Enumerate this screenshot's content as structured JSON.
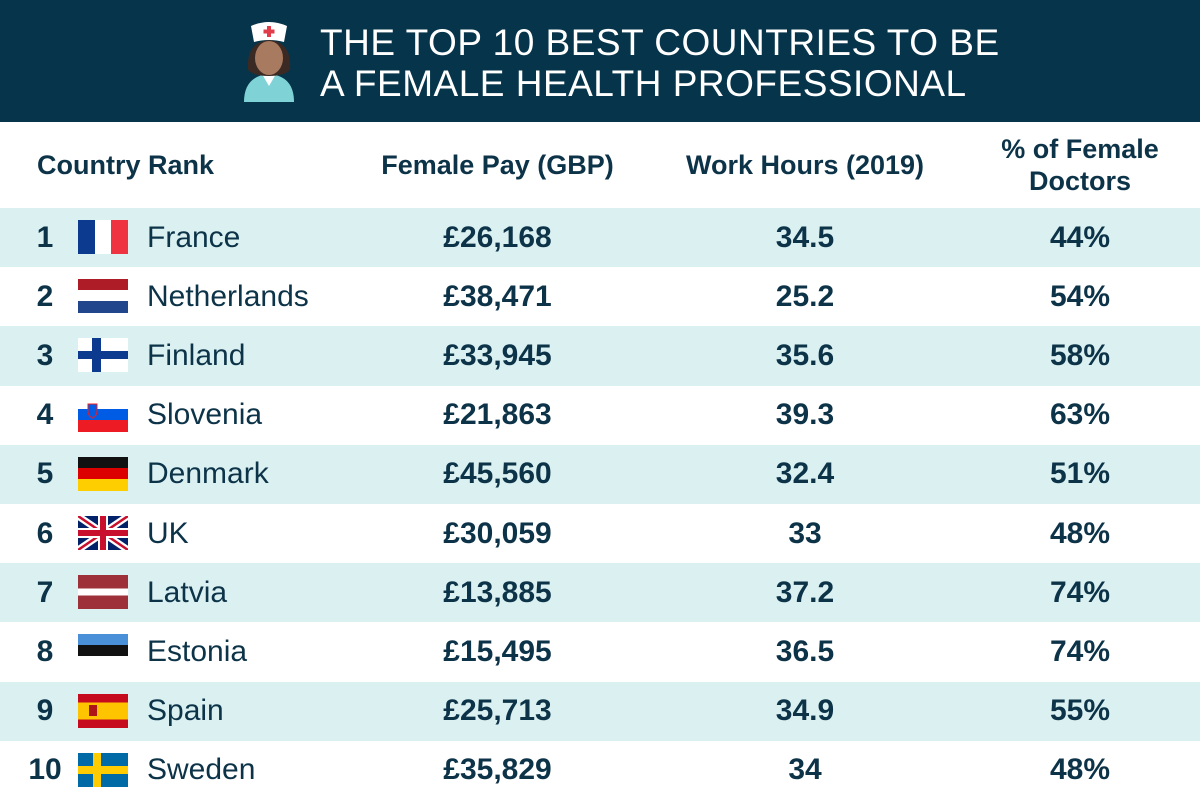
{
  "header": {
    "title_lines": [
      "THE TOP 10 BEST COUNTRIES TO BE",
      "A FEMALE HEALTH PROFESSIONAL"
    ]
  },
  "table": {
    "columns": [
      "Country Rank",
      "Female Pay (GBP)",
      "Work Hours (2019)",
      "% of Female Doctors"
    ],
    "rows": [
      [
        "1",
        "France",
        "£26,168",
        "34.5",
        "44%"
      ],
      [
        "2",
        "Netherlands",
        "£38,471",
        "25.2",
        "54%"
      ],
      [
        "3",
        "Finland",
        "£33,945",
        "35.6",
        "58%"
      ],
      [
        "4",
        "Slovenia",
        "£21,863",
        "39.3",
        "63%"
      ],
      [
        "5",
        "Denmark",
        "£45,560",
        "32.4",
        "51%"
      ],
      [
        "6",
        "UK",
        "£30,059",
        "33",
        "48%"
      ],
      [
        "7",
        "Latvia",
        "£13,885",
        "37.2",
        "74%"
      ],
      [
        "8",
        "Estonia",
        "£15,495",
        "36.5",
        "74%"
      ],
      [
        "9",
        "Spain",
        "£25,713",
        "34.9",
        "55%"
      ],
      [
        "10",
        "Sweden",
        "£35,829",
        "34",
        "48%"
      ]
    ]
  }
}
